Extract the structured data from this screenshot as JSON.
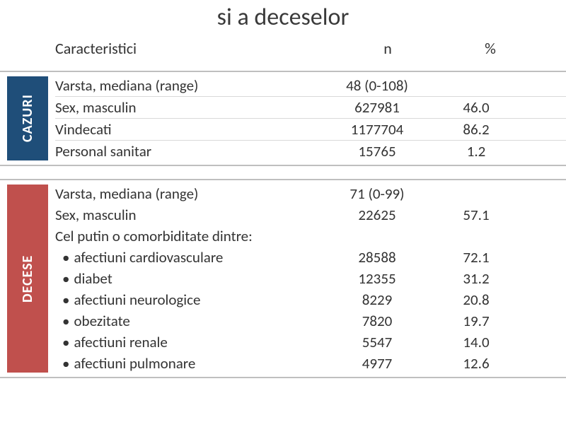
{
  "title": "si a deceselor",
  "headers": {
    "characteristic": "Caracteristici",
    "n": "n",
    "pct": "%"
  },
  "colors": {
    "cazuri_bg": "#1f4e79",
    "decese_bg": "#c0504d",
    "text": "#333333",
    "border": "#bfbfbf",
    "row_border": "#d9d9d9"
  },
  "sections": {
    "cazuri": {
      "label": "CAZURI",
      "rows": [
        {
          "label": "Varsta, mediana (range)",
          "n": "48 (0-108)",
          "pct": ""
        },
        {
          "label": "Sex, masculin",
          "n": "627981",
          "pct": "46.0"
        },
        {
          "label": "Vindecati",
          "n": "1177704",
          "pct": "86.2"
        },
        {
          "label": "Personal sanitar",
          "n": "15765",
          "pct": "1.2"
        }
      ]
    },
    "decese": {
      "label": "DECESE",
      "rows": [
        {
          "label": "Varsta, mediana (range)",
          "n": "71 (0-99)",
          "pct": ""
        },
        {
          "label": "Sex, masculin",
          "n": "22625",
          "pct": "57.1"
        },
        {
          "label": "Cel putin o comorbiditate dintre:",
          "n": "",
          "pct": ""
        }
      ],
      "bullets": [
        {
          "label": "afectiuni cardiovasculare",
          "n": "28588",
          "pct": "72.1"
        },
        {
          "label": "diabet",
          "n": "12355",
          "pct": "31.2"
        },
        {
          "label": "afectiuni neurologice",
          "n": "8229",
          "pct": "20.8"
        },
        {
          "label": "obezitate",
          "n": "7820",
          "pct": "19.7"
        },
        {
          "label": "afectiuni renale",
          "n": "5547",
          "pct": "14.0"
        },
        {
          "label": "afectiuni pulmonare",
          "n": "4977",
          "pct": "12.6"
        }
      ]
    }
  }
}
